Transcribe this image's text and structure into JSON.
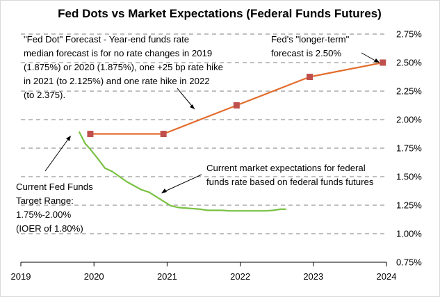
{
  "chart_data": {
    "type": "line",
    "title": "Fed Dots vs Market Expectations (Federal Funds Futures)",
    "xlabel": "",
    "ylabel": "",
    "xlim": [
      2019,
      2024
    ],
    "ylim": [
      0.75,
      2.75
    ],
    "x_ticks": [
      "2019",
      "2020",
      "2021",
      "2022",
      "2023",
      "2024"
    ],
    "y_ticks": [
      "2.75%",
      "2.50%",
      "2.25%",
      "2.00%",
      "1.75%",
      "1.50%",
      "1.25%",
      "1.00%",
      "0.75%"
    ],
    "grid": "horizontal dashed",
    "series": [
      {
        "role": "fed-dots",
        "color": "#e36c2c",
        "marker_color": "#c0504d",
        "x": [
          2019.95,
          2020.95,
          2021.95,
          2022.95,
          2023.95
        ],
        "values": [
          1.875,
          1.875,
          2.125,
          2.375,
          2.5
        ],
        "markers": true
      },
      {
        "role": "market-expectations",
        "color": "#7ac142",
        "x": [
          2019.8,
          2019.88,
          2019.95,
          2020.05,
          2020.15,
          2020.25,
          2020.35,
          2020.45,
          2020.55,
          2020.65,
          2020.75,
          2020.85,
          2020.95,
          2021.05,
          2021.15,
          2021.25,
          2021.35,
          2021.45,
          2021.55,
          2021.65,
          2021.75,
          2021.85,
          2021.95,
          2022.05,
          2022.15,
          2022.25,
          2022.35,
          2022.45,
          2022.55,
          2022.62
        ],
        "values": [
          1.89,
          1.79,
          1.74,
          1.66,
          1.575,
          1.545,
          1.5,
          1.455,
          1.42,
          1.385,
          1.365,
          1.325,
          1.285,
          1.245,
          1.23,
          1.225,
          1.22,
          1.215,
          1.205,
          1.205,
          1.205,
          1.2,
          1.2,
          1.2,
          1.2,
          1.2,
          1.2,
          1.205,
          1.215,
          1.215
        ],
        "markers": false
      }
    ],
    "annotations": [
      {
        "lines": [
          "\"Fed Dot\" Forecast - Year-end funds rate",
          "median forecast is for no rate changes in 2019",
          "(1.875%) or 2020 (1.875%), one +25 bp rate hike",
          "in 2021 (to 2.125%) and one rate hike in 2022",
          "(to 2.375)."
        ]
      },
      {
        "lines": [
          "Fed's \"longer-term\"",
          "forecast is 2.50%"
        ]
      },
      {
        "lines": [
          "Current market expectations for federal",
          "funds rate based on federal funds futures"
        ]
      },
      {
        "lines": [
          "Current Fed Funds",
          "Target Range:",
          "1.75%-2.00%",
          "(IOER of 1.80%)"
        ]
      }
    ]
  }
}
